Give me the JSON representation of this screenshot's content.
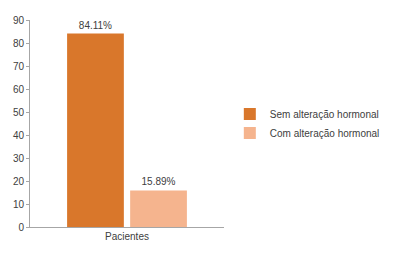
{
  "chart_data": {
    "type": "bar",
    "categories": [
      "Pacientes"
    ],
    "series": [
      {
        "name": "Sem alteração hormonal",
        "color": "#d9772b",
        "values": [
          84.11
        ],
        "value_labels": [
          "84.11%"
        ]
      },
      {
        "name": "Com alteração hormonal",
        "color": "#f5b48e",
        "values": [
          15.89
        ],
        "value_labels": [
          "15.89%"
        ]
      }
    ],
    "ylim": [
      0,
      90
    ],
    "yticks": [
      0,
      10,
      20,
      30,
      40,
      50,
      60,
      70,
      80,
      90
    ],
    "grid": false,
    "legend": "right",
    "data_labels": true
  }
}
